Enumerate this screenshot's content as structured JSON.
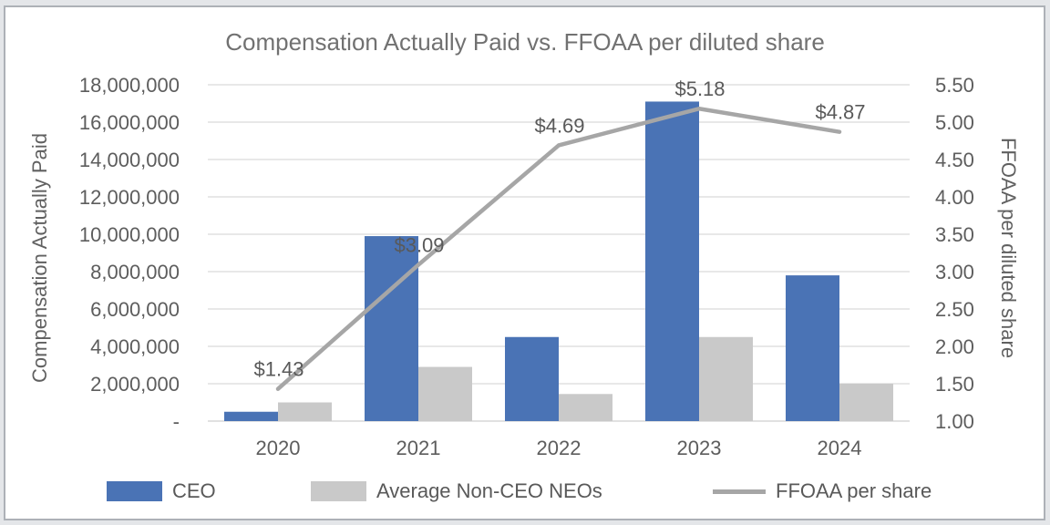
{
  "window": {
    "background": "#ffffff",
    "frame_color": "#adb1b7",
    "outer_color": "#e4e6e9"
  },
  "chart_data": {
    "type": "combo",
    "title": "Compensation Actually Paid vs. FFOAA per diluted share",
    "categories": [
      "2020",
      "2021",
      "2022",
      "2023",
      "2024"
    ],
    "series": [
      {
        "name": "CEO",
        "type": "bar",
        "axis": "left",
        "color": "#4a73b5",
        "values": [
          500000,
          9900000,
          4500000,
          17100000,
          7800000
        ]
      },
      {
        "name": "Average Non-CEO NEOs",
        "type": "bar",
        "axis": "left",
        "color": "#c9c9c9",
        "values": [
          1000000,
          2900000,
          1450000,
          4500000,
          2000000
        ]
      },
      {
        "name": "FFOAA per share",
        "type": "line",
        "axis": "right",
        "color": "#a6a6a6",
        "values": [
          1.43,
          3.09,
          4.69,
          5.18,
          4.87
        ],
        "point_labels": [
          "$1.43",
          "$3.09",
          "$4.69",
          "$5.18",
          "$4.87"
        ]
      }
    ],
    "left_axis": {
      "title": "Compensation Actually Paid",
      "min": 0,
      "max": 18000000,
      "step": 2000000,
      "tick_labels_top_to_bottom": [
        "18,000,000",
        "16,000,000",
        "14,000,000",
        "12,000,000",
        "10,000,000",
        "8,000,000",
        "6,000,000",
        "4,000,000",
        "2,000,000",
        "-"
      ]
    },
    "right_axis": {
      "title": "FFOAA per diluted share",
      "min": 1.0,
      "max": 5.5,
      "step": 0.5,
      "tick_labels_top_to_bottom": [
        "5.50",
        "5.00",
        "4.50",
        "4.00",
        "3.50",
        "3.00",
        "2.50",
        "2.00",
        "1.50",
        "1.00"
      ]
    },
    "grid": "horizontal",
    "gridline_color": "#dbdbdb",
    "baseline_color": "#cfcfcf",
    "text_color": "#5d5d5d",
    "legend": {
      "position": "bottom",
      "items": [
        "CEO",
        "Average Non-CEO NEOs",
        "FFOAA per share"
      ]
    }
  }
}
